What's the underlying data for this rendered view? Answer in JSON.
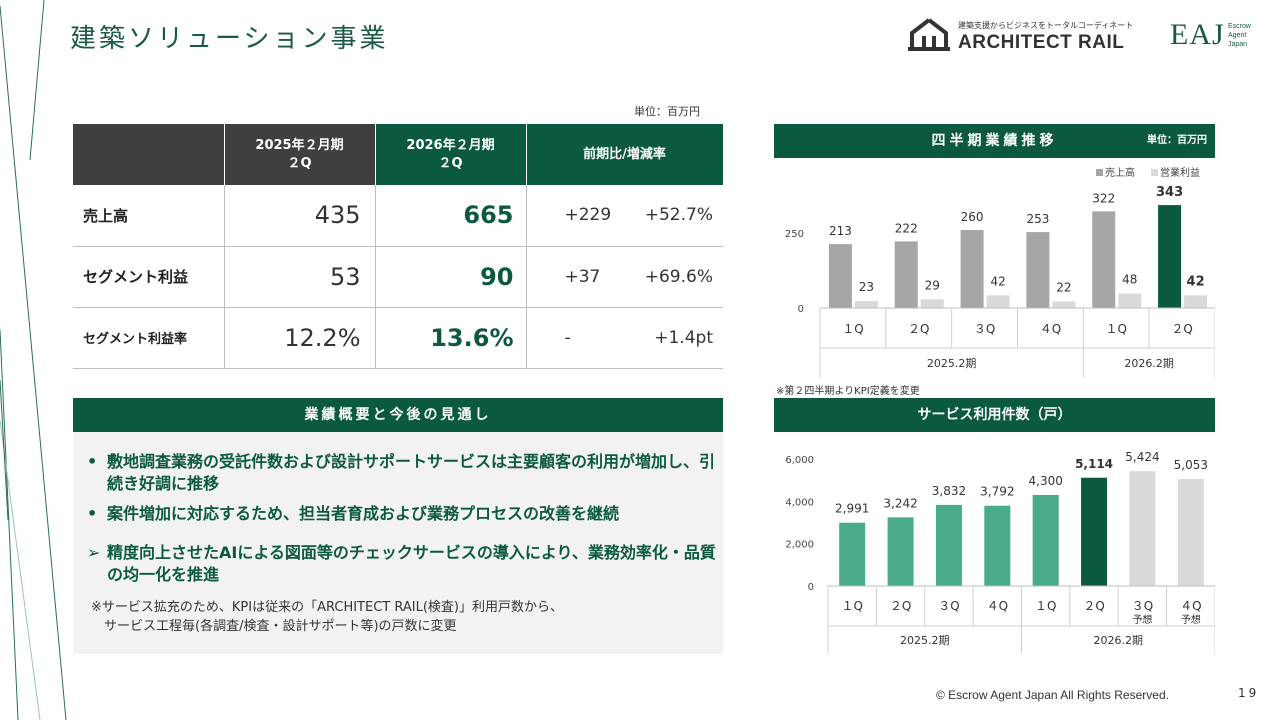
{
  "page": {
    "title": "建築ソリューション事業",
    "footer": "© Escrow Agent Japan All Rights Reserved.",
    "page_number": "19"
  },
  "logos": {
    "ar_tagline": "建築支援からビジネスをトータルコーディネート",
    "ar_name": "ARCHITECT RAIL",
    "eaj_mark": "EAJ",
    "eaj_sub": "Escrow\nAgent\nJapan"
  },
  "table": {
    "unit": "単位：百万円",
    "headers": [
      "2025年２月期\n２Q",
      "2026年２月期\n２Q",
      "前期比/増減率"
    ],
    "rows": [
      {
        "label": "売上高",
        "v2025": "435",
        "v2026": "665",
        "diff": "+229",
        "rate": "+52.7%"
      },
      {
        "label": "セグメント利益",
        "v2025": "53",
        "v2026": "90",
        "diff": "+37",
        "rate": "+69.6%"
      },
      {
        "label": "セグメント利益率",
        "v2025": "12.2%",
        "v2026": "13.6%",
        "diff": "-",
        "rate": "+1.4pt"
      }
    ]
  },
  "summary": {
    "heading": "業績概要と今後の見通し",
    "bullets": [
      {
        "marker": "•",
        "text": "敷地調査業務の受託件数および設計サポートサービスは主要顧客の利用が増加し、引続き好調に推移"
      },
      {
        "marker": "•",
        "text": "案件増加に対応するため、担当者育成および業務プロセスの改善を継続"
      },
      {
        "marker": "➢",
        "text": "精度向上させたAIによる図面等のチェックサービスの導入により、業務効率化・品質の均一化を推進"
      }
    ],
    "note": "※サービス拡充のため、KPIは従来の「ARCHITECT RAIL(検査)」利用戸数から、\n　サービス工程毎(各調査/検査・設計サポート等)の戸数に変更"
  },
  "chart_data": [
    {
      "type": "bar",
      "title": "四半期業績推移",
      "unit": "単位：百万円",
      "categories": [
        "1Q",
        "2Q",
        "3Q",
        "4Q",
        "1Q",
        "2Q"
      ],
      "category_labels": [
        "１Q",
        "２Q",
        "３Q",
        "４Q",
        "１Q",
        "２Q"
      ],
      "groups": [
        {
          "label": "2025.2期",
          "span": 4
        },
        {
          "label": "2026.2期",
          "span": 2
        }
      ],
      "series": [
        {
          "name": "売上高",
          "values": [
            213,
            222,
            260,
            253,
            322,
            343
          ],
          "color": "#a6a6a6",
          "highlight_color": "#0b5a3f"
        },
        {
          "name": "営業利益",
          "values": [
            23,
            29,
            42,
            22,
            48,
            42
          ],
          "color": "#d9d9d9"
        }
      ],
      "highlight_index": 5,
      "yticks": [
        0,
        250
      ],
      "ylim": [
        0,
        400
      ],
      "legend": "top-right",
      "note": "※第２四半期よりKPI定義を変更"
    },
    {
      "type": "bar",
      "title": "サービス利用件数（戸）",
      "categories": [
        "1Q",
        "2Q",
        "3Q",
        "4Q",
        "1Q",
        "2Q",
        "3Q",
        "4Q"
      ],
      "category_labels": [
        "１Q",
        "２Q",
        "３Q",
        "４Q",
        "１Q",
        "２Q",
        "３Q",
        "４Q"
      ],
      "sub_labels": [
        "",
        "",
        "",
        "",
        "",
        "",
        "予想",
        "予想"
      ],
      "groups": [
        {
          "label": "2025.2期",
          "span": 4
        },
        {
          "label": "2026.2期",
          "span": 4
        }
      ],
      "values": [
        2991,
        3242,
        3832,
        3792,
        4300,
        5114,
        5424,
        5053
      ],
      "value_labels": [
        "2,991",
        "3,242",
        "3,832",
        "3,792",
        "4,300",
        "5,114",
        "5,424",
        "5,053"
      ],
      "bar_colors": [
        "#4aab8c",
        "#4aab8c",
        "#4aab8c",
        "#4aab8c",
        "#4aab8c",
        "#0b5a3f",
        "#d9d9d9",
        "#d9d9d9"
      ],
      "highlight_index": 5,
      "yticks": [
        0,
        2000,
        4000,
        6000
      ],
      "ytick_labels": [
        "0",
        "2,000",
        "4,000",
        "6,000"
      ],
      "ylim": [
        0,
        6000
      ]
    }
  ]
}
